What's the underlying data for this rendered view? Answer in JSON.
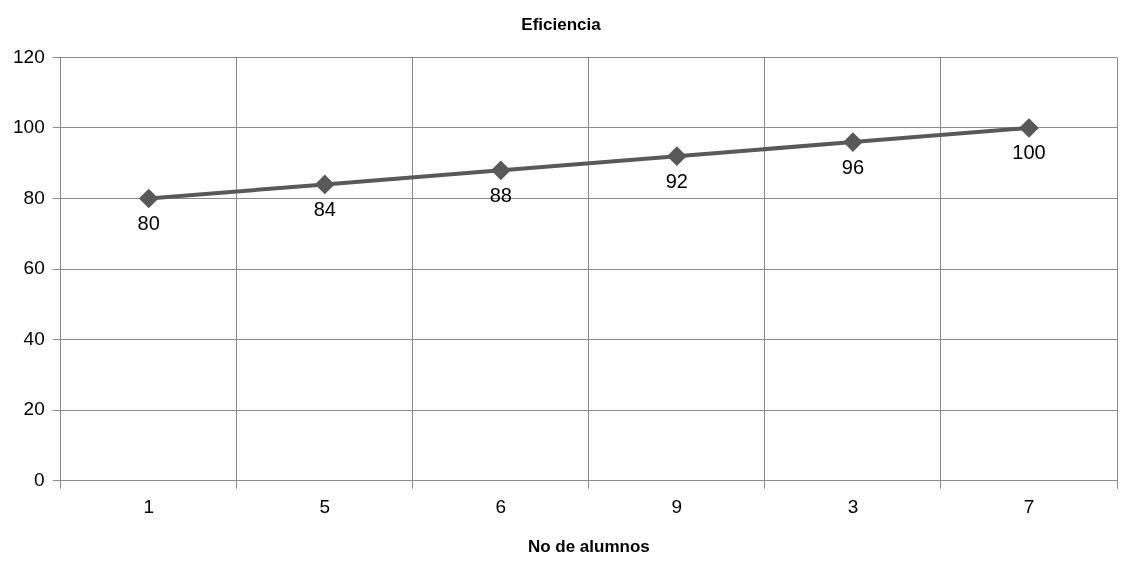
{
  "chart_data": {
    "type": "line",
    "title": "Eficiencia",
    "xlabel": "No de alumnos",
    "categories": [
      "1",
      "5",
      "6",
      "9",
      "3",
      "7"
    ],
    "series": [
      {
        "color": "#595959",
        "values": [
          80,
          84,
          88,
          92,
          96,
          100
        ]
      }
    ],
    "ylim": [
      0,
      120
    ],
    "yticks": [
      0,
      20,
      40,
      60,
      80,
      100,
      120
    ],
    "grid": true,
    "legend": false,
    "marker": "diamond",
    "line_style": "solid",
    "data_labels": true
  }
}
